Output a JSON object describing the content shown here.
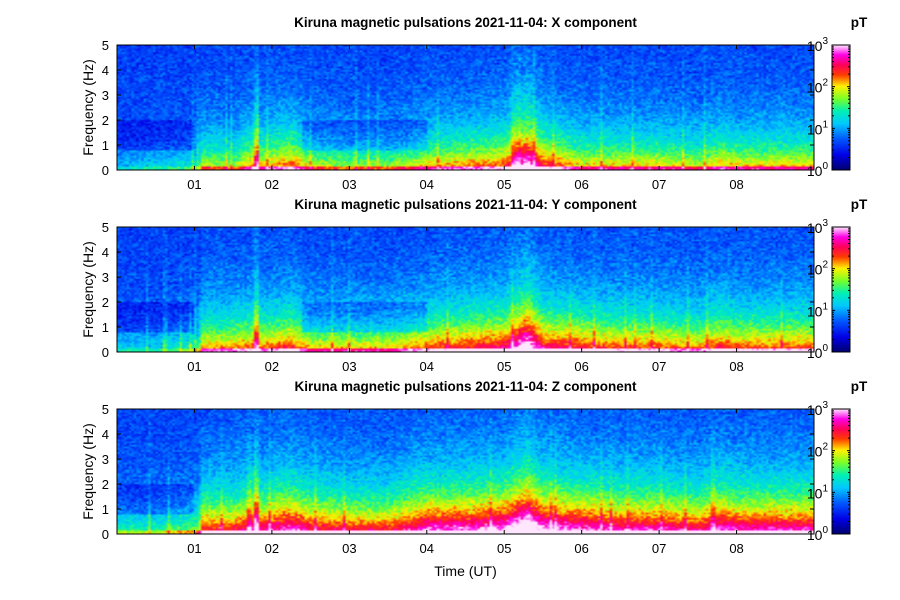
{
  "chart_data": [
    {
      "type": "heatmap",
      "title": "Kiruna magnetic pulsations 2021-11-04: X component",
      "component": "X",
      "xlabel": "",
      "ylabel": "Frequency (Hz)",
      "xlim": [
        0,
        9
      ],
      "ylim": [
        0,
        5
      ],
      "x_ticks": [
        "01",
        "02",
        "03",
        "04",
        "05",
        "06",
        "07",
        "08"
      ],
      "y_ticks": [
        "0",
        "1",
        "2",
        "3",
        "4",
        "5"
      ],
      "colorbar": {
        "unit": "pT",
        "scale": "log",
        "range": [
          1,
          1000
        ],
        "tick_base": "10",
        "tick_exponents": [
          "0",
          "1",
          "2",
          "3"
        ]
      },
      "activity_profile": [
        [
          0,
          0.15
        ],
        [
          0.5,
          0.2
        ],
        [
          1.05,
          0.25
        ],
        [
          1.1,
          0.45
        ],
        [
          1.5,
          0.4
        ],
        [
          1.75,
          0.55
        ],
        [
          1.8,
          0.85
        ],
        [
          1.85,
          0.5
        ],
        [
          2.25,
          0.6
        ],
        [
          2.5,
          0.45
        ],
        [
          3.0,
          0.4
        ],
        [
          3.5,
          0.4
        ],
        [
          4.0,
          0.5
        ],
        [
          4.5,
          0.55
        ],
        [
          5.0,
          0.6
        ],
        [
          5.3,
          0.9
        ],
        [
          5.5,
          0.65
        ],
        [
          6.0,
          0.5
        ],
        [
          6.5,
          0.5
        ],
        [
          7.0,
          0.5
        ],
        [
          7.5,
          0.45
        ],
        [
          7.8,
          0.55
        ],
        [
          8.0,
          0.5
        ],
        [
          8.5,
          0.5
        ],
        [
          9.0,
          0.5
        ]
      ]
    },
    {
      "type": "heatmap",
      "title": "Kiruna magnetic pulsations 2021-11-04: Y component",
      "component": "Y",
      "xlabel": "",
      "ylabel": "Frequency (Hz)",
      "xlim": [
        0,
        9
      ],
      "ylim": [
        0,
        5
      ],
      "x_ticks": [
        "01",
        "02",
        "03",
        "04",
        "05",
        "06",
        "07",
        "08"
      ],
      "y_ticks": [
        "0",
        "1",
        "2",
        "3",
        "4",
        "5"
      ],
      "colorbar": {
        "unit": "pT",
        "scale": "log",
        "range": [
          1,
          1000
        ],
        "tick_base": "10",
        "tick_exponents": [
          "0",
          "1",
          "2",
          "3"
        ]
      },
      "activity_profile": [
        [
          0,
          0.2
        ],
        [
          0.5,
          0.2
        ],
        [
          1.05,
          0.3
        ],
        [
          1.1,
          0.55
        ],
        [
          1.5,
          0.55
        ],
        [
          1.75,
          0.6
        ],
        [
          1.8,
          0.95
        ],
        [
          1.85,
          0.55
        ],
        [
          2.25,
          0.65
        ],
        [
          2.5,
          0.5
        ],
        [
          3.0,
          0.5
        ],
        [
          3.5,
          0.5
        ],
        [
          4.0,
          0.6
        ],
        [
          4.5,
          0.65
        ],
        [
          5.0,
          0.7
        ],
        [
          5.3,
          0.95
        ],
        [
          5.5,
          0.7
        ],
        [
          6.0,
          0.65
        ],
        [
          6.5,
          0.6
        ],
        [
          7.0,
          0.6
        ],
        [
          7.5,
          0.55
        ],
        [
          7.8,
          0.65
        ],
        [
          8.0,
          0.6
        ],
        [
          8.5,
          0.6
        ],
        [
          9.0,
          0.6
        ]
      ]
    },
    {
      "type": "heatmap",
      "title": "Kiruna magnetic pulsations 2021-11-04: Z component",
      "component": "Z",
      "xlabel": "Time  (UT)",
      "ylabel": "Frequency (Hz)",
      "xlim": [
        0,
        9
      ],
      "ylim": [
        0,
        5
      ],
      "x_ticks": [
        "01",
        "02",
        "03",
        "04",
        "05",
        "06",
        "07",
        "08"
      ],
      "y_ticks": [
        "0",
        "1",
        "2",
        "3",
        "4",
        "5"
      ],
      "colorbar": {
        "unit": "pT",
        "scale": "log",
        "range": [
          1,
          1000
        ],
        "tick_base": "10",
        "tick_exponents": [
          "0",
          "1",
          "2",
          "3"
        ]
      },
      "activity_profile": [
        [
          0,
          0.3
        ],
        [
          0.5,
          0.3
        ],
        [
          1.05,
          0.4
        ],
        [
          1.1,
          0.65
        ],
        [
          1.5,
          0.65
        ],
        [
          1.75,
          0.75
        ],
        [
          1.8,
          1.05
        ],
        [
          1.85,
          0.7
        ],
        [
          2.25,
          0.8
        ],
        [
          2.5,
          0.7
        ],
        [
          3.0,
          0.65
        ],
        [
          3.5,
          0.65
        ],
        [
          4.0,
          0.8
        ],
        [
          4.5,
          0.8
        ],
        [
          5.0,
          0.85
        ],
        [
          5.3,
          1.05
        ],
        [
          5.5,
          0.85
        ],
        [
          6.0,
          0.8
        ],
        [
          6.5,
          0.75
        ],
        [
          7.0,
          0.75
        ],
        [
          7.5,
          0.7
        ],
        [
          7.8,
          0.8
        ],
        [
          8.0,
          0.75
        ],
        [
          8.5,
          0.75
        ],
        [
          9.0,
          0.75
        ]
      ]
    }
  ]
}
